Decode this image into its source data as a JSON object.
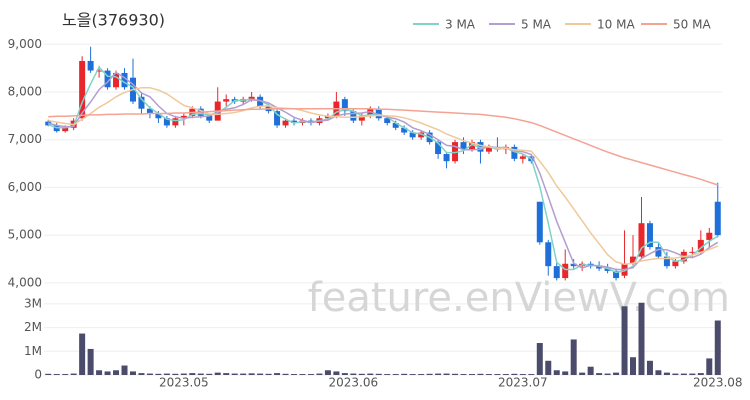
{
  "watermark": "feature.enViewV.com",
  "chart_data": [
    {
      "type": "candlestick",
      "title": "노을(376930)",
      "categories": [
        null,
        null,
        null,
        null,
        null,
        null,
        null,
        null,
        null,
        null,
        null,
        null,
        null,
        null,
        null,
        null,
        "2023.05",
        null,
        null,
        null,
        null,
        null,
        null,
        null,
        null,
        null,
        null,
        null,
        null,
        null,
        null,
        null,
        null,
        null,
        null,
        null,
        "2023.06",
        null,
        null,
        null,
        null,
        null,
        null,
        null,
        null,
        null,
        null,
        null,
        null,
        null,
        null,
        null,
        null,
        null,
        null,
        null,
        "2023.07",
        null,
        null,
        null,
        null,
        null,
        null,
        null,
        null,
        null,
        null,
        null,
        null,
        null,
        null,
        null,
        null,
        null,
        null,
        null,
        null,
        null,
        null,
        "2023.08"
      ],
      "open": [
        7380,
        7300,
        7180,
        7250,
        7450,
        8650,
        8450,
        8450,
        8100,
        8400,
        8300,
        7900,
        7650,
        7550,
        7450,
        7300,
        7450,
        7500,
        7650,
        7500,
        7400,
        7800,
        7850,
        7800,
        7850,
        7900,
        7700,
        7600,
        7300,
        7400,
        7350,
        7400,
        7350,
        7450,
        7500,
        7850,
        7600,
        7400,
        7500,
        7650,
        7450,
        7350,
        7250,
        7150,
        7050,
        7150,
        6950,
        6700,
        6550,
        6950,
        6800,
        6950,
        6750,
        6850,
        6800,
        6850,
        6600,
        6650,
        5700,
        4850,
        4350,
        4100,
        4400,
        4350,
        4400,
        4350,
        4300,
        4250,
        4150,
        4400,
        4550,
        5250,
        4750,
        4550,
        4350,
        4450,
        4650,
        4650,
        4900,
        5700
      ],
      "high": [
        7420,
        7350,
        7300,
        7450,
        8750,
        8950,
        8550,
        8500,
        8450,
        8500,
        8700,
        8000,
        7700,
        7600,
        7500,
        7500,
        7550,
        7700,
        7700,
        7550,
        8100,
        7950,
        7900,
        7900,
        8000,
        7950,
        7750,
        7650,
        7450,
        7450,
        7450,
        7450,
        7500,
        7550,
        8000,
        7900,
        7650,
        7550,
        7700,
        7700,
        7500,
        7400,
        7300,
        7200,
        7200,
        7200,
        7000,
        6750,
        7000,
        7050,
        7000,
        7000,
        6900,
        7050,
        6900,
        6900,
        6700,
        6700,
        5700,
        4900,
        4450,
        4700,
        4500,
        4450,
        4450,
        4450,
        4400,
        4300,
        5100,
        5000,
        5800,
        5300,
        4850,
        4650,
        4500,
        4700,
        4750,
        5100,
        5150,
        6100
      ],
      "low": [
        7280,
        7150,
        7150,
        7200,
        7400,
        8400,
        8300,
        8050,
        8050,
        8050,
        7750,
        7550,
        7450,
        7350,
        7250,
        7250,
        7300,
        7450,
        7450,
        7350,
        7400,
        7700,
        7750,
        7750,
        7800,
        7650,
        7550,
        7250,
        7250,
        7300,
        7300,
        7300,
        7300,
        7400,
        7450,
        7500,
        7350,
        7300,
        7450,
        7400,
        7300,
        7200,
        7100,
        7000,
        7000,
        6900,
        6600,
        6400,
        6500,
        6700,
        6750,
        6500,
        6700,
        6750,
        6700,
        6550,
        6500,
        6500,
        4800,
        4150,
        4050,
        4050,
        4300,
        4250,
        4300,
        4250,
        4200,
        4050,
        4100,
        4300,
        4500,
        4700,
        4500,
        4300,
        4300,
        4400,
        4550,
        4600,
        4750,
        4950
      ],
      "close": [
        7300,
        7180,
        7280,
        7400,
        8650,
        8450,
        8450,
        8100,
        8400,
        8100,
        7800,
        7650,
        7550,
        7450,
        7300,
        7450,
        7500,
        7650,
        7500,
        7400,
        7800,
        7850,
        7800,
        7850,
        7900,
        7700,
        7600,
        7300,
        7400,
        7350,
        7400,
        7350,
        7450,
        7500,
        7800,
        7600,
        7400,
        7500,
        7650,
        7450,
        7350,
        7250,
        7150,
        7050,
        7150,
        6950,
        6700,
        6550,
        6950,
        6800,
        6950,
        6750,
        6850,
        6800,
        6850,
        6600,
        6650,
        6550,
        4850,
        4350,
        4100,
        4400,
        4350,
        4400,
        4350,
        4300,
        4250,
        4100,
        4400,
        4550,
        5250,
        4750,
        4550,
        4350,
        4450,
        4650,
        4650,
        4900,
        5050,
        5000
      ],
      "up_color": "#e8262b",
      "down_color": "#1e6fd9",
      "series": [
        {
          "name": "3 MA",
          "color": "#7fd3c8",
          "values": [
            7320,
            7250,
            7250,
            7290,
            7780,
            8170,
            8520,
            8330,
            8320,
            8200,
            8100,
            7850,
            7670,
            7550,
            7430,
            7400,
            7420,
            7530,
            7550,
            7520,
            7570,
            7680,
            7820,
            7830,
            7850,
            7820,
            7730,
            7530,
            7430,
            7350,
            7380,
            7370,
            7400,
            7430,
            7580,
            7630,
            7600,
            7500,
            7520,
            7530,
            7480,
            7350,
            7250,
            7150,
            7120,
            7050,
            6930,
            6730,
            6730,
            6770,
            6900,
            6830,
            6850,
            6800,
            6830,
            6750,
            6700,
            6600,
            6020,
            5250,
            4430,
            4280,
            4280,
            4380,
            4370,
            4350,
            4300,
            4220,
            4250,
            4350,
            4730,
            4850,
            4850,
            4550,
            4450,
            4480,
            4580,
            4730,
            4870,
            4980
          ]
        },
        {
          "name": "5 MA",
          "color": "#b49dd0",
          "values": [
            7350,
            7300,
            7270,
            7280,
            7560,
            7790,
            8050,
            8210,
            8410,
            8300,
            8160,
            7980,
            7900,
            7710,
            7550,
            7480,
            7450,
            7470,
            7480,
            7500,
            7570,
            7640,
            7670,
            7740,
            7840,
            7820,
            7770,
            7670,
            7580,
            7470,
            7410,
            7360,
            7390,
            7410,
            7500,
            7540,
            7550,
            7560,
            7590,
            7520,
            7470,
            7440,
            7370,
            7250,
            7190,
            7110,
            7000,
            6880,
            6860,
            6790,
            6790,
            6800,
            6860,
            6830,
            6840,
            6770,
            6750,
            6690,
            6300,
            5800,
            5290,
            4850,
            4410,
            4310,
            4370,
            4360,
            4330,
            4280,
            4280,
            4320,
            4510,
            4610,
            4700,
            4690,
            4630,
            4550,
            4530,
            4600,
            4740,
            4850
          ]
        },
        {
          "name": "10 MA",
          "color": "#efc99a",
          "values": [
            7400,
            7370,
            7340,
            7320,
            7430,
            7550,
            7680,
            7780,
            7900,
            7990,
            8050,
            8090,
            8090,
            8040,
            7960,
            7840,
            7720,
            7670,
            7610,
            7540,
            7530,
            7550,
            7570,
            7610,
            7670,
            7700,
            7710,
            7670,
            7660,
            7650,
            7610,
            7560,
            7520,
            7490,
            7480,
            7470,
            7470,
            7480,
            7500,
            7510,
            7500,
            7490,
            7460,
            7410,
            7350,
            7280,
            7210,
            7120,
            7050,
            6980,
            6930,
            6880,
            6850,
            6820,
            6820,
            6790,
            6780,
            6760,
            6550,
            6310,
            6030,
            5800,
            5550,
            5300,
            5050,
            4820,
            4590,
            4440,
            4390,
            4410,
            4460,
            4490,
            4510,
            4510,
            4520,
            4550,
            4580,
            4640,
            4700,
            4770
          ]
        },
        {
          "name": "50 MA",
          "color": "#f4a393",
          "values": [
            7480,
            7490,
            7490,
            7500,
            7510,
            7520,
            7520,
            7530,
            7530,
            7540,
            7540,
            7540,
            7550,
            7550,
            7550,
            7560,
            7560,
            7570,
            7580,
            7590,
            7600,
            7610,
            7620,
            7630,
            7640,
            7640,
            7650,
            7650,
            7650,
            7650,
            7650,
            7650,
            7650,
            7650,
            7650,
            7650,
            7650,
            7650,
            7650,
            7640,
            7640,
            7630,
            7620,
            7610,
            7600,
            7590,
            7580,
            7570,
            7560,
            7550,
            7540,
            7530,
            7510,
            7490,
            7470,
            7440,
            7400,
            7360,
            7300,
            7230,
            7160,
            7090,
            7020,
            6950,
            6880,
            6810,
            6740,
            6680,
            6620,
            6570,
            6520,
            6470,
            6420,
            6370,
            6320,
            6270,
            6220,
            6170,
            6110,
            6050
          ]
        }
      ],
      "ylim": [
        3850,
        9300
      ],
      "yticks": [
        {
          "value": 4000,
          "label": "4,000"
        },
        {
          "value": 5000,
          "label": "5,000"
        },
        {
          "value": 6000,
          "label": "6,000"
        },
        {
          "value": 7000,
          "label": "7,000"
        },
        {
          "value": 8000,
          "label": "8,000"
        },
        {
          "value": 9000,
          "label": "9,000"
        }
      ],
      "grid": true
    },
    {
      "type": "bar",
      "color": "#4b4b6b",
      "values": [
        50000,
        40000,
        40000,
        60000,
        1750000,
        1100000,
        200000,
        150000,
        200000,
        400000,
        150000,
        80000,
        60000,
        50000,
        60000,
        50000,
        60000,
        80000,
        60000,
        50000,
        100000,
        80000,
        60000,
        60000,
        70000,
        60000,
        50000,
        80000,
        50000,
        40000,
        40000,
        40000,
        60000,
        200000,
        150000,
        80000,
        60000,
        50000,
        60000,
        50000,
        40000,
        40000,
        50000,
        40000,
        40000,
        50000,
        60000,
        60000,
        50000,
        40000,
        40000,
        50000,
        40000,
        40000,
        40000,
        50000,
        40000,
        40000,
        1350000,
        600000,
        200000,
        150000,
        1500000,
        100000,
        350000,
        80000,
        60000,
        100000,
        2900000,
        750000,
        3050000,
        600000,
        200000,
        100000,
        60000,
        60000,
        60000,
        80000,
        700000,
        2300000
      ],
      "ylim": [
        0,
        3250000
      ],
      "yticks": [
        0,
        {
          "value": 1000000,
          "label": "1M"
        },
        {
          "value": 2000000,
          "label": "2M"
        },
        {
          "value": 3000000,
          "label": "3M"
        }
      ],
      "grid": true
    }
  ]
}
